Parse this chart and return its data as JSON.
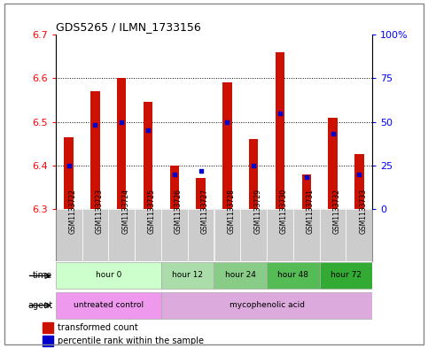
{
  "title": "GDS5265 / ILMN_1733156",
  "samples": [
    "GSM1133722",
    "GSM1133723",
    "GSM1133724",
    "GSM1133725",
    "GSM1133726",
    "GSM1133727",
    "GSM1133728",
    "GSM1133729",
    "GSM1133730",
    "GSM1133731",
    "GSM1133732",
    "GSM1133733"
  ],
  "bar_tops": [
    6.465,
    6.57,
    6.6,
    6.545,
    6.4,
    6.37,
    6.59,
    6.46,
    6.66,
    6.38,
    6.51,
    6.425
  ],
  "bar_bottom": 6.3,
  "percentile_values": [
    25,
    48,
    50,
    45,
    20,
    22,
    50,
    25,
    55,
    18,
    43,
    20
  ],
  "ylim_left": [
    6.3,
    6.7
  ],
  "ylim_right": [
    0,
    100
  ],
  "yticks_left": [
    6.3,
    6.4,
    6.5,
    6.6,
    6.7
  ],
  "yticks_right": [
    0,
    25,
    50,
    75,
    100
  ],
  "ytick_right_labels": [
    "0",
    "25",
    "50",
    "75",
    "100%"
  ],
  "bar_color": "#cc1100",
  "blue_color": "#0000cc",
  "time_groups": [
    {
      "label": "hour 0",
      "start": 0,
      "end": 4,
      "color": "#ccffcc"
    },
    {
      "label": "hour 12",
      "start": 4,
      "end": 6,
      "color": "#aaddaa"
    },
    {
      "label": "hour 24",
      "start": 6,
      "end": 8,
      "color": "#88cc88"
    },
    {
      "label": "hour 48",
      "start": 8,
      "end": 10,
      "color": "#55bb55"
    },
    {
      "label": "hour 72",
      "start": 10,
      "end": 12,
      "color": "#33aa33"
    }
  ],
  "agent_groups": [
    {
      "label": "untreated control",
      "start": 0,
      "end": 4,
      "color": "#ee99ee"
    },
    {
      "label": "mycophenolic acid",
      "start": 4,
      "end": 12,
      "color": "#ddaadd"
    }
  ],
  "bar_width": 0.35,
  "legend_items": [
    {
      "label": "transformed count",
      "color": "#cc1100"
    },
    {
      "label": "percentile rank within the sample",
      "color": "#0000cc"
    }
  ],
  "bg_color": "#ffffff",
  "plot_bg": "#ffffff",
  "sample_bg": "#cccccc",
  "border_color": "#888888"
}
